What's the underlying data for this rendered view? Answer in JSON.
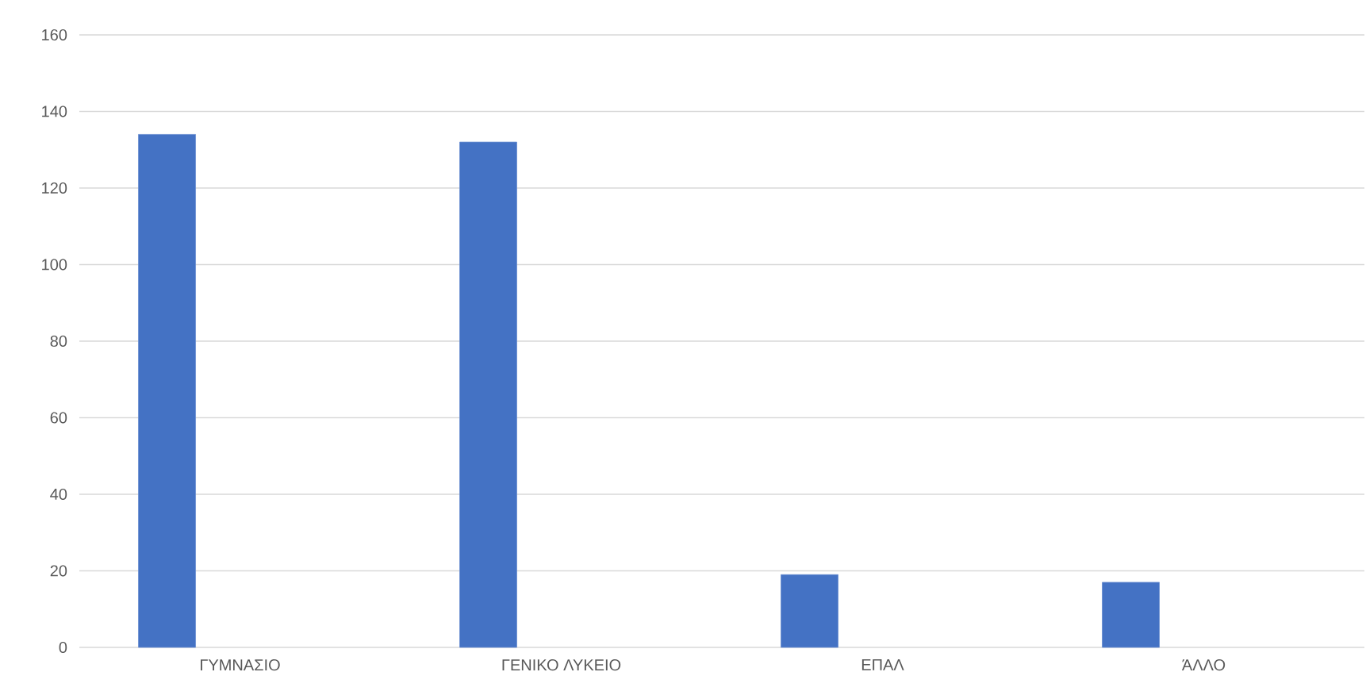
{
  "chart_data": {
    "type": "bar",
    "categories": [
      "ΓΥΜΝΑΣΙΟ",
      "ΓΕΝΙΚΟ ΛΥΚΕΙΟ",
      "ΕΠΑΛ",
      "ΆΛΛΟ"
    ],
    "values": [
      134,
      132,
      19,
      17
    ],
    "color": "#4472c4",
    "ylim": [
      0,
      160
    ],
    "yticks": [
      0,
      20,
      40,
      60,
      80,
      100,
      120,
      140,
      160
    ],
    "grid": "y"
  }
}
